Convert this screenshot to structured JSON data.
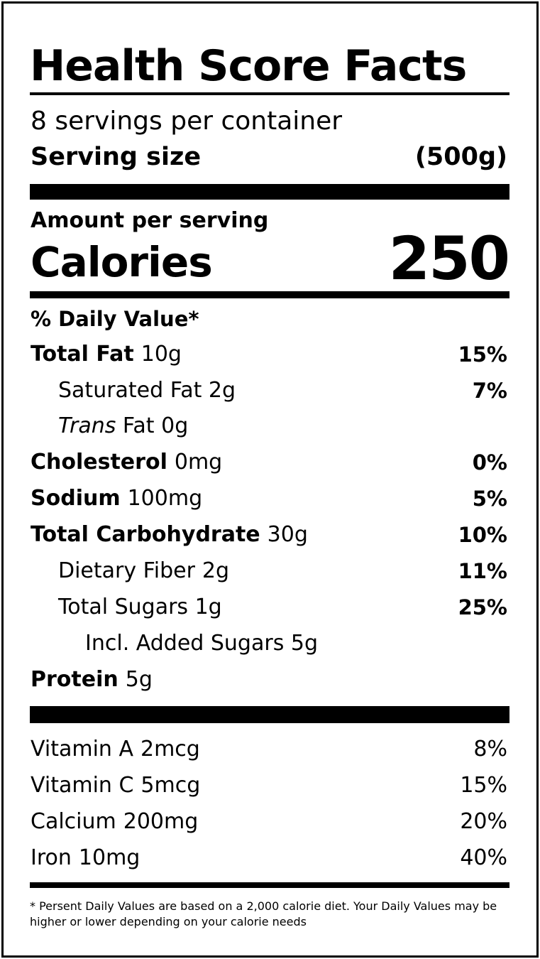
{
  "title": "Health Score Facts",
  "servings_per_container": "8 servings per container",
  "serving_size_label": "Serving size",
  "serving_size_value": "(500g)",
  "amount_per_serving": "Amount per serving",
  "calories_label": "Calories",
  "calories_value": "250",
  "daily_value_header": "% Daily Value*",
  "nutrients": [
    {
      "name": "Total Fat",
      "amount": "10g",
      "percent": "15%"
    },
    {
      "name": "Saturated Fat",
      "amount": "2g",
      "percent": "7%"
    },
    {
      "name": "Trans",
      "name_rest": "Fat",
      "amount": "0g",
      "percent": ""
    },
    {
      "name": "Cholesterol",
      "amount": "0mg",
      "percent": "0%"
    },
    {
      "name": "Sodium",
      "amount": "100mg",
      "percent": "5%"
    },
    {
      "name": "Total Carbohydrate",
      "amount": "30g",
      "percent": "10%"
    },
    {
      "name": "Dietary Fiber",
      "amount": "2g",
      "percent": "11%"
    },
    {
      "name": "Total Sugars",
      "amount": "1g",
      "percent": "25%"
    },
    {
      "name": "Incl. Added Sugars",
      "amount": "5g",
      "percent": ""
    },
    {
      "name": "Protein",
      "amount": "5g",
      "percent": ""
    }
  ],
  "vitamins": [
    {
      "name": "Vitamin A",
      "amount": "2mcg",
      "percent": "8%"
    },
    {
      "name": "Vitamin C",
      "amount": "5mcg",
      "percent": "15%"
    },
    {
      "name": "Calcium",
      "amount": "200mg",
      "percent": "20%"
    },
    {
      "name": "Iron",
      "amount": "10mg",
      "percent": "40%"
    }
  ],
  "footnote": "* Persent Daily Values are based on a 2,000 calorie diet. Your Daily Values may be higher or lower depending on your calorie needs"
}
